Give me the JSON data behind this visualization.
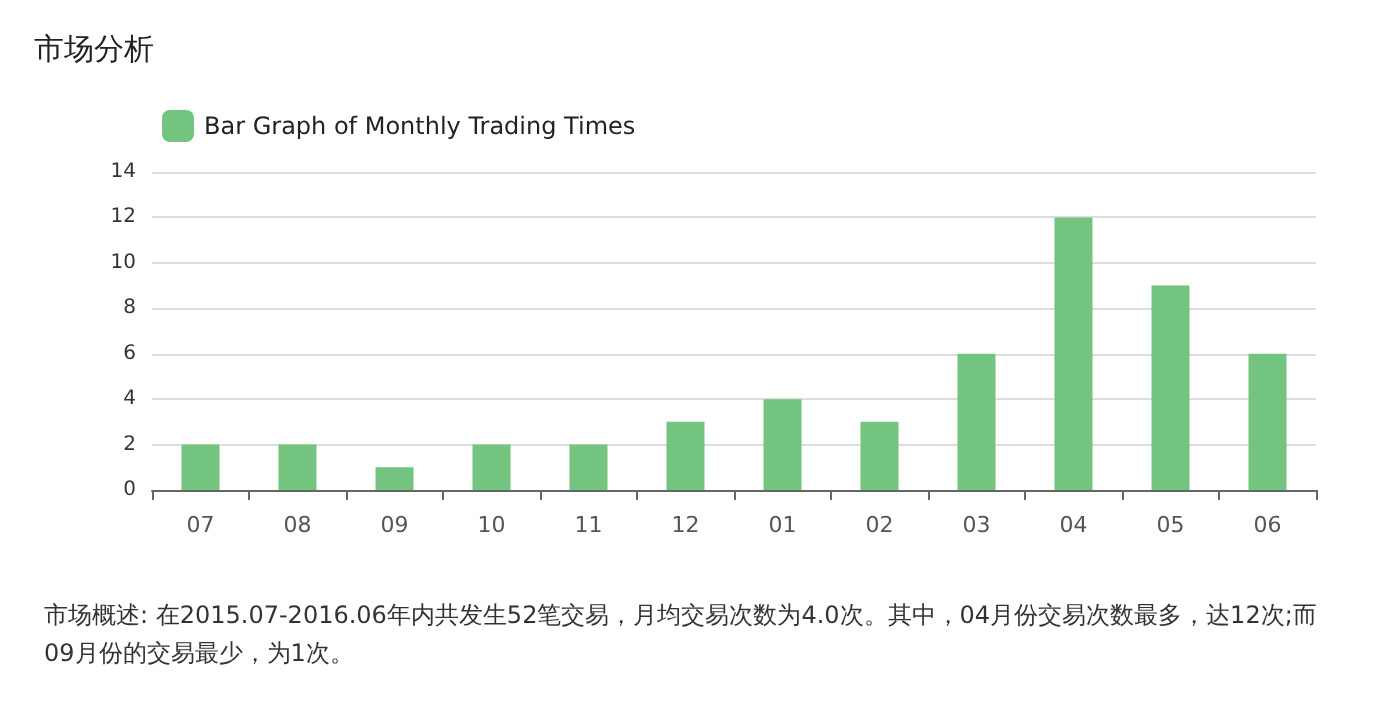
{
  "chart_data": {
    "type": "bar",
    "title": "市场分析",
    "categories": [
      "07",
      "08",
      "09",
      "10",
      "11",
      "12",
      "01",
      "02",
      "03",
      "04",
      "05",
      "06"
    ],
    "series": [
      {
        "name": "Bar Graph of Monthly Trading Times",
        "color": "#73c47e",
        "values": [
          2,
          2,
          1,
          2,
          2,
          3,
          4,
          3,
          6,
          12,
          9,
          6
        ]
      }
    ],
    "ylim": [
      0,
      14
    ],
    "yticks": [
      0,
      2,
      4,
      6,
      8,
      10,
      12,
      14
    ],
    "grid": "y",
    "legend": "top left",
    "annotations": [
      "市场概述: 在2015.07-2016.06年内共发生52笔交易，月均交易次数为4.0次。其中，04月份交易次数最多，达12次;而09月份的交易最少，为1次。"
    ]
  }
}
